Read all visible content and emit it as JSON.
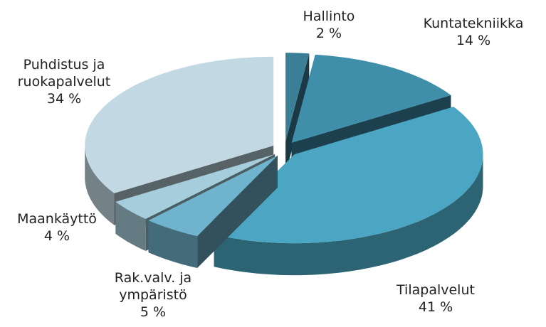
{
  "chart_data": {
    "type": "pie3d",
    "categories": [
      "Hallinto",
      "Kuntatekniikka",
      "Tilapalvelut",
      "Rak.valv. ja ympäristö",
      "Maankäyttö",
      "Puhdistus ja ruokapalvelut"
    ],
    "values": [
      2,
      14,
      41,
      5,
      4,
      34
    ],
    "value_labels": [
      "2 %",
      "14 %",
      "41 %",
      "5 %",
      "4 %",
      "34 %"
    ],
    "colors": [
      "#3a7f96",
      "#3f8fab",
      "#4aa6c2",
      "#6fb3cc",
      "#a6cddc",
      "#c2d9e3"
    ]
  }
}
